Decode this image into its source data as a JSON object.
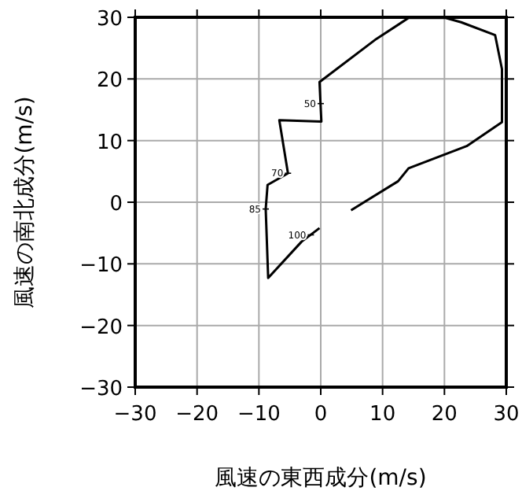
{
  "chart_data": {
    "type": "line",
    "xlabel": "風速の東西成分(m/s)",
    "ylabel": "風速の南北成分(m/s)",
    "xlim": [
      -30,
      30
    ],
    "ylim": [
      -30,
      30
    ],
    "xticks": [
      -30,
      -20,
      -10,
      0,
      10,
      20,
      30
    ],
    "yticks": [
      -30,
      -20,
      -10,
      0,
      10,
      20,
      30
    ],
    "grid": true,
    "marker": "none",
    "line_style": "solid",
    "series": [
      {
        "color": "#000000",
        "x": [
          4.9,
          12.5,
          14.2,
          23.6,
          29.3,
          29.3,
          28.2,
          22.7,
          20.2,
          14.2,
          9.0,
          -0.2,
          0.1,
          -6.7,
          -5.3,
          -8.6,
          -8.9,
          -8.5,
          -3.1,
          -0.2
        ],
        "values": [
          -1.3,
          3.4,
          5.5,
          9.1,
          13.0,
          21.6,
          27.1,
          29.2,
          29.9,
          29.9,
          26.5,
          19.5,
          13.1,
          13.3,
          4.7,
          2.8,
          -1.1,
          -12.3,
          -6.4,
          -4.2
        ]
      }
    ],
    "annotations": [
      {
        "text": "50",
        "x": 0,
        "y": 16
      },
      {
        "text": "70",
        "x": -5.3,
        "y": 4.7
      },
      {
        "text": "85",
        "x": -8.9,
        "y": -1.1
      },
      {
        "text": "100",
        "x": -1.6,
        "y": -5.3
      }
    ]
  }
}
